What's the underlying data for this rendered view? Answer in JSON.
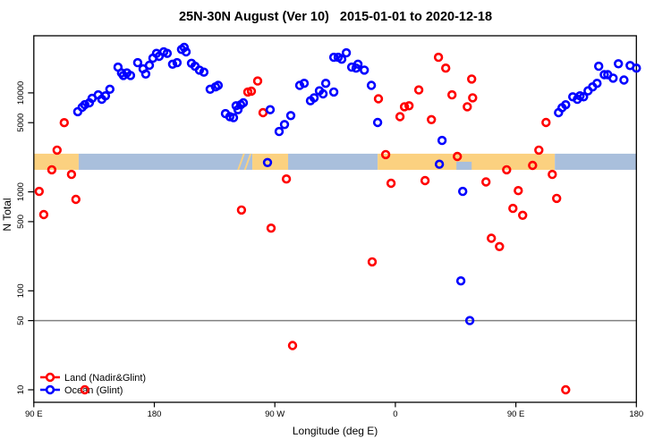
{
  "chart_data": {
    "type": "scatter",
    "title": "25N-30N August (Ver 10)   2015-01-01 to 2020-12-18",
    "xlabel": "Longitude (deg E)",
    "ylabel": "N Total",
    "x_axis": {
      "range_deg_east": [
        90,
        540
      ],
      "note": "longitude wraps eastward starting at 90E",
      "ticks": [
        {
          "value": 90,
          "label": "90 E"
        },
        {
          "value": 180,
          "label": "180"
        },
        {
          "value": 270,
          "label": "90 W"
        },
        {
          "value": 360,
          "label": "0"
        },
        {
          "value": 450,
          "label": "90 E"
        },
        {
          "value": 540,
          "label": "180"
        }
      ]
    },
    "y_axis": {
      "scale": "log",
      "ticks": [
        10,
        50,
        100,
        500,
        1000,
        5000,
        10000
      ],
      "range": [
        7.5,
        38000
      ]
    },
    "reference_line": {
      "y": 50,
      "color": "#808080"
    },
    "coastline_band": {
      "y_range": [
        1670,
        2430
      ],
      "land_color": "#FBD180",
      "ocean_color": "#A9BFDC",
      "segments": [
        {
          "type": "land",
          "from": 90,
          "to": 123.5
        },
        {
          "type": "ocean",
          "from": 123.5,
          "to": 253.2
        },
        {
          "type": "land",
          "from": 253.2,
          "to": 279.9
        },
        {
          "type": "ocean",
          "from": 279.9,
          "to": 346.8
        },
        {
          "type": "land",
          "from": 346.8,
          "to": 479.1
        },
        {
          "type": "ocean",
          "from": 479.1,
          "to": 540
        }
      ],
      "island_slivers": [
        244.3,
        249.3
      ],
      "ocean_notches": [
        {
          "from": 405.6,
          "to": 417,
          "depth": "bottom-half"
        }
      ]
    },
    "legend": {
      "position": "bottom-left"
    },
    "series": [
      {
        "name": "Land (Nadir&Glint)",
        "color": "#FF0000",
        "marker": "open-circle",
        "points": [
          [
            94.0,
            1010
          ],
          [
            97.4,
            590
          ],
          [
            103.4,
            1670
          ],
          [
            107.4,
            2640
          ],
          [
            112.7,
            5000
          ],
          [
            118.1,
            1500
          ],
          [
            121.4,
            840
          ],
          [
            128.1,
            10
          ],
          [
            245.1,
            655
          ],
          [
            249.8,
            10200
          ],
          [
            252.5,
            10400
          ],
          [
            257.2,
            13200
          ],
          [
            261.2,
            6310
          ],
          [
            267.2,
            430
          ],
          [
            278.6,
            1350
          ],
          [
            283.2,
            28
          ],
          [
            342.7,
            196
          ],
          [
            347.4,
            8710
          ],
          [
            352.8,
            2380
          ],
          [
            356.8,
            1220
          ],
          [
            363.5,
            5750
          ],
          [
            366.8,
            7240
          ],
          [
            370.2,
            7410
          ],
          [
            377.5,
            10700
          ],
          [
            382.2,
            1300
          ],
          [
            386.9,
            5370
          ],
          [
            392.2,
            22900
          ],
          [
            397.6,
            17800
          ],
          [
            402.3,
            9550
          ],
          [
            406.3,
            2280
          ],
          [
            413.7,
            7240
          ],
          [
            417.0,
            13800
          ],
          [
            417.7,
            8910
          ],
          [
            427.7,
            1260
          ],
          [
            431.7,
            340
          ],
          [
            437.8,
            280
          ],
          [
            443.1,
            1670
          ],
          [
            447.8,
            680
          ],
          [
            451.8,
            1030
          ],
          [
            455.1,
            580
          ],
          [
            462.5,
            1850
          ],
          [
            467.2,
            2640
          ],
          [
            472.5,
            5020
          ],
          [
            477.2,
            1500
          ],
          [
            480.5,
            860
          ],
          [
            487.2,
            10
          ]
        ]
      },
      {
        "name": "Ocean (Glint)",
        "color": "#0000FF",
        "marker": "open-circle",
        "points": [
          [
            122.8,
            6460
          ],
          [
            126.1,
            7160
          ],
          [
            128.1,
            7600
          ],
          [
            131.5,
            7940
          ],
          [
            133.5,
            8810
          ],
          [
            138.1,
            9550
          ],
          [
            140.8,
            8630
          ],
          [
            143.5,
            9330
          ],
          [
            146.8,
            10900
          ],
          [
            152.9,
            18200
          ],
          [
            155.5,
            15900
          ],
          [
            156.9,
            15000
          ],
          [
            159.5,
            15900
          ],
          [
            162.2,
            15000
          ],
          [
            167.6,
            20200
          ],
          [
            171.6,
            17500
          ],
          [
            173.6,
            15500
          ],
          [
            176.3,
            19000
          ],
          [
            178.9,
            22400
          ],
          [
            181.6,
            25100
          ],
          [
            183.6,
            23400
          ],
          [
            187.0,
            26000
          ],
          [
            189.6,
            25100
          ],
          [
            193.6,
            19500
          ],
          [
            197.0,
            20200
          ],
          [
            200.3,
            27500
          ],
          [
            202.3,
            28800
          ],
          [
            203.7,
            26000
          ],
          [
            207.7,
            19900
          ],
          [
            210.4,
            18600
          ],
          [
            213.7,
            17000
          ],
          [
            217.0,
            16200
          ],
          [
            221.7,
            10900
          ],
          [
            225.7,
            11500
          ],
          [
            227.7,
            11900
          ],
          [
            233.1,
            6170
          ],
          [
            236.4,
            5750
          ],
          [
            239.1,
            5620
          ],
          [
            241.1,
            7410
          ],
          [
            242.5,
            6760
          ],
          [
            244.5,
            7590
          ],
          [
            246.5,
            7940
          ],
          [
            264.5,
            1980
          ],
          [
            266.5,
            6760
          ],
          [
            273.2,
            4070
          ],
          [
            277.2,
            4790
          ],
          [
            281.9,
            5890
          ],
          [
            288.6,
            11900
          ],
          [
            291.9,
            12500
          ],
          [
            296.6,
            8320
          ],
          [
            299.3,
            8910
          ],
          [
            303.3,
            10500
          ],
          [
            306.0,
            9770
          ],
          [
            308.0,
            12500
          ],
          [
            314.0,
            22900
          ],
          [
            314.0,
            10200
          ],
          [
            317.3,
            22900
          ],
          [
            320.0,
            21900
          ],
          [
            323.4,
            25400
          ],
          [
            327.4,
            18200
          ],
          [
            330.7,
            17800
          ],
          [
            332.1,
            19500
          ],
          [
            336.8,
            17000
          ],
          [
            342.1,
            11900
          ],
          [
            346.8,
            5020
          ],
          [
            392.9,
            1900
          ],
          [
            394.9,
            3310
          ],
          [
            410.3,
            1010
          ],
          [
            408.9,
            126
          ],
          [
            415.6,
            50
          ],
          [
            481.9,
            6310
          ],
          [
            484.5,
            7080
          ],
          [
            487.2,
            7590
          ],
          [
            492.5,
            9120
          ],
          [
            495.9,
            8610
          ],
          [
            497.9,
            9330
          ],
          [
            500.6,
            9120
          ],
          [
            503.9,
            10500
          ],
          [
            507.3,
            11500
          ],
          [
            510.6,
            12500
          ],
          [
            511.9,
            18600
          ],
          [
            516.0,
            15300
          ],
          [
            518.6,
            15300
          ],
          [
            522.6,
            14100
          ],
          [
            526.6,
            19700
          ],
          [
            530.7,
            13500
          ],
          [
            535.3,
            18900
          ],
          [
            540.0,
            17800
          ]
        ]
      }
    ]
  }
}
